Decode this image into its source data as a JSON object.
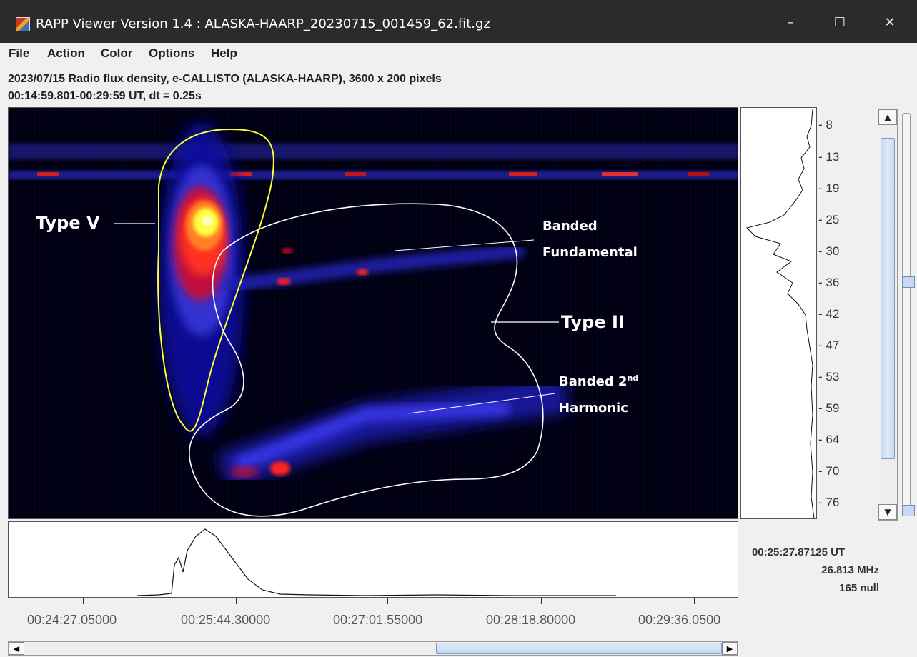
{
  "window": {
    "title": "RAPP Viewer Version 1.4 : ALASKA-HAARP_20230715_001459_62.fit.gz",
    "minimize": "–",
    "maximize": "☐",
    "close": "✕"
  },
  "menu": [
    "File",
    "Action",
    "Color",
    "Options",
    "Help"
  ],
  "info": {
    "line1": "2023/07/15  Radio flux density, e-CALLISTO (ALASKA-HAARP),  3600 x 200 pixels",
    "line2": "00:14:59.801-00:29:59 UT,  dt = 0.25s"
  },
  "freq_ticks": [
    "8",
    "13",
    "19",
    "25",
    "30",
    "36",
    "42",
    "47",
    "53",
    "59",
    "64",
    "70",
    "76"
  ],
  "time_ticks": [
    "00:24:27.05000",
    "00:25:44.30000",
    "00:27:01.55000",
    "00:28:18.80000",
    "00:29:36.0500"
  ],
  "readout": {
    "time": "00:25:27.87125 UT",
    "freq": "26.813 MHz",
    "value": "165 null"
  },
  "annotations": {
    "type_v": "Type V",
    "type_ii": "Type II",
    "banded_fund_1": "Banded",
    "banded_fund_2": "Fundamental",
    "banded_harm_1": "Banded 2",
    "banded_harm_sup": "nd",
    "banded_harm_2": "Harmonic"
  },
  "colors": {
    "annotation_type_v": "#ffff33",
    "annotation_type_ii": "#ffffff",
    "spectrum_bg": "#000010"
  }
}
